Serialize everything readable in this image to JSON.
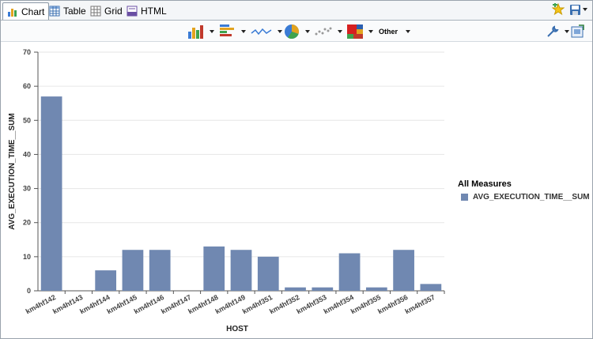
{
  "tabs": [
    {
      "label": "Chart",
      "icon": "bar-chart-icon",
      "active": true
    },
    {
      "label": "Table",
      "icon": "table-icon",
      "active": false
    },
    {
      "label": "Grid",
      "icon": "grid-icon",
      "active": false
    },
    {
      "label": "HTML",
      "icon": "html-icon",
      "active": false
    }
  ],
  "toolbar": {
    "other_label": "Other"
  },
  "colors": {
    "bar": "#7088b1",
    "grid": "#e6e6e6",
    "axis": "#555555"
  },
  "chart_data": {
    "type": "bar",
    "categories": [
      "km4hf142",
      "km4hf143",
      "km4hf144",
      "km4hf145",
      "km4hf146",
      "km4hf147",
      "km4hf148",
      "km4hf149",
      "km4hf351",
      "km4hf352",
      "km4hf353",
      "km4hf354",
      "km4hf355",
      "km4hf356",
      "km4hf357"
    ],
    "series": [
      {
        "name": "AVG_EXECUTION_TIME__SUM",
        "values": [
          57,
          0,
          6,
          12,
          12,
          0,
          13,
          12,
          10,
          1,
          1,
          11,
          1,
          12,
          2
        ]
      }
    ],
    "xlabel": "HOST",
    "ylabel": "AVG_EXECUTION_TIME__SUM",
    "ylim": [
      0,
      70
    ],
    "yticks": [
      0,
      10,
      20,
      30,
      40,
      50,
      60,
      70
    ],
    "grid": true,
    "legend_title": "All Measures",
    "legend_position": "right"
  }
}
